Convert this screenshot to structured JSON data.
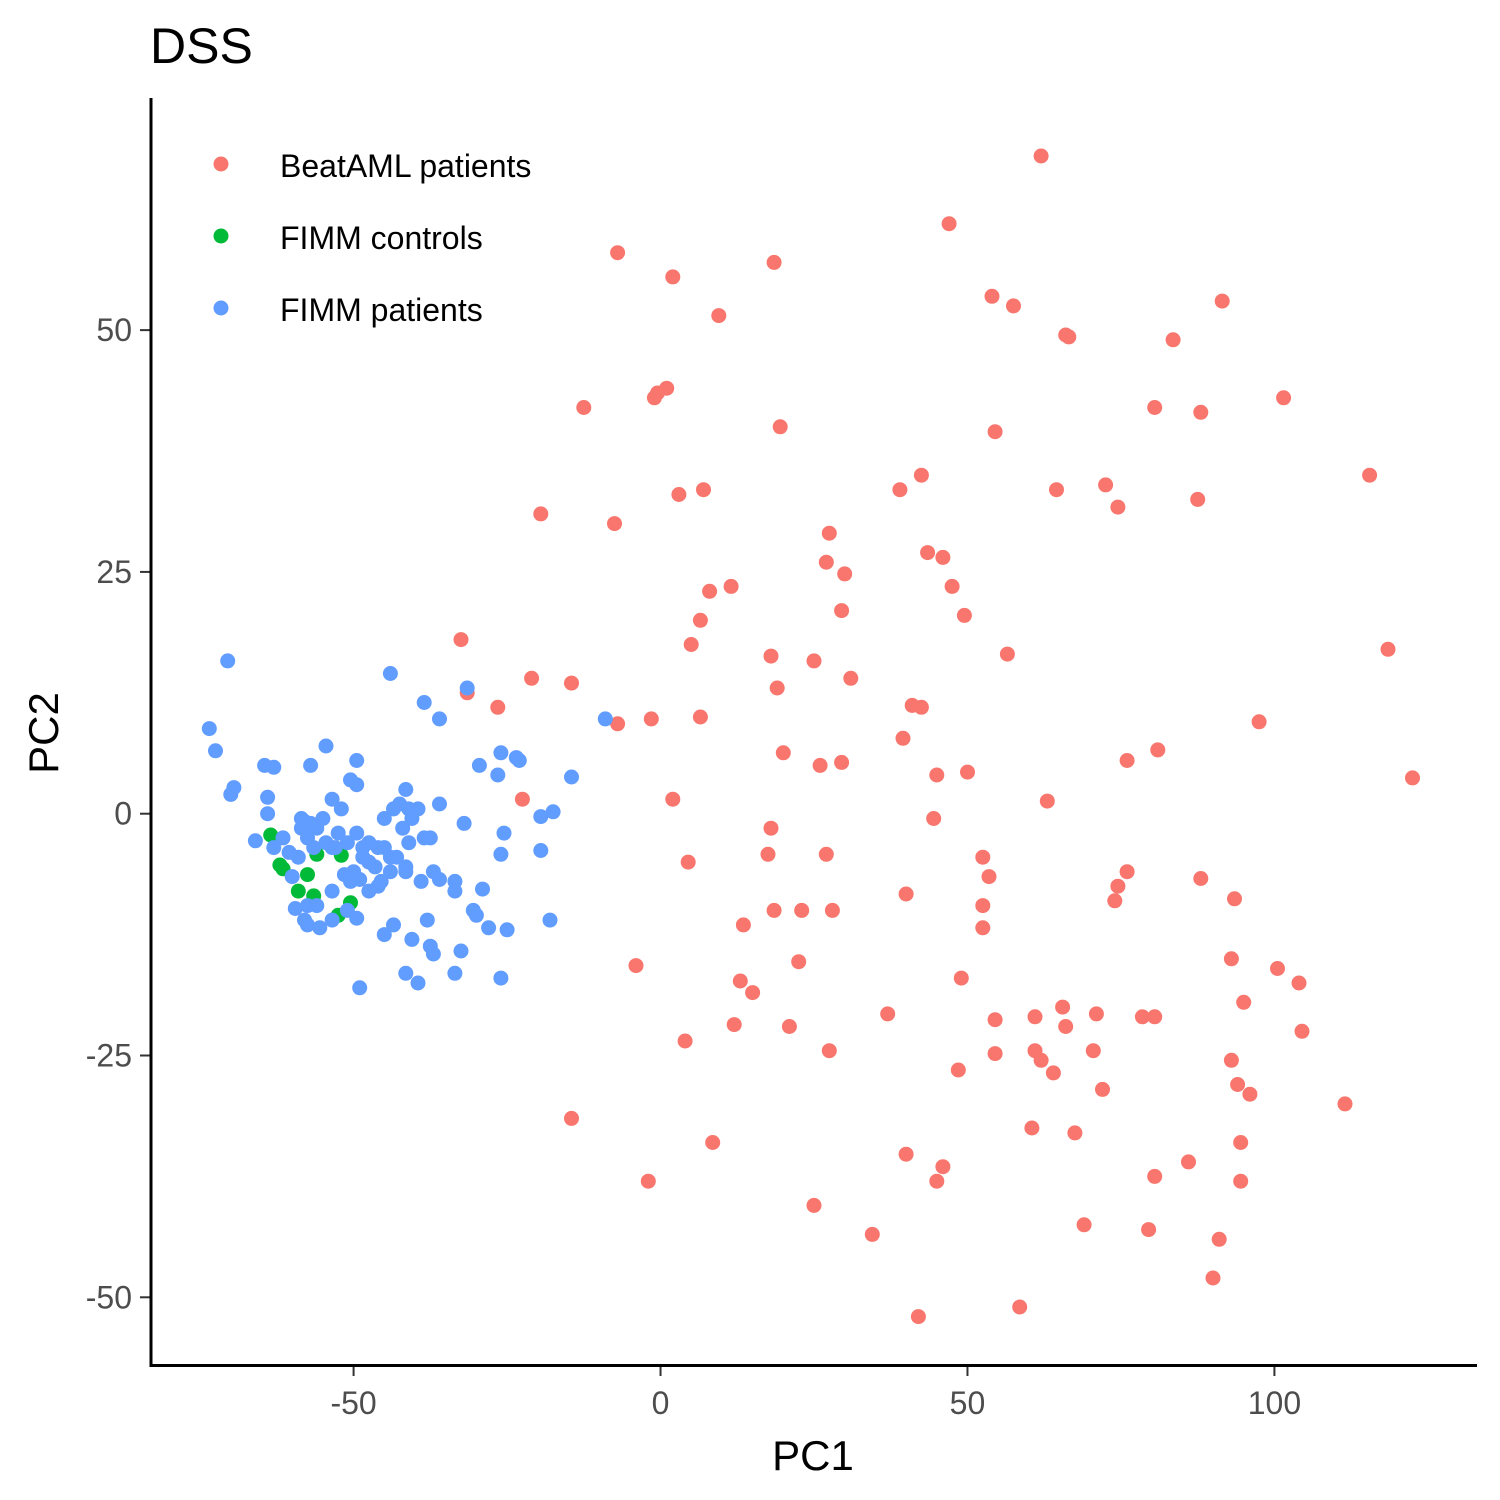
{
  "chart_data": {
    "type": "scatter",
    "title": "DSS",
    "xlabel": "PC1",
    "ylabel": "PC2",
    "xlim": [
      -83,
      133
    ],
    "ylim": [
      -57,
      74
    ],
    "x_ticks": [
      -50,
      0,
      50,
      100
    ],
    "y_ticks": [
      -50,
      -25,
      0,
      25,
      50
    ],
    "x_tick_labels": [
      "-50",
      "0",
      "50",
      "100"
    ],
    "y_tick_labels": [
      "-50",
      "-25",
      "0",
      "25",
      "50"
    ],
    "grid": false,
    "legend_position": "top-left",
    "series": [
      {
        "name": "BeatAML patients",
        "color": "#F8766D",
        "points": [
          [
            62,
            68
          ],
          [
            47,
            61
          ],
          [
            -7,
            58
          ],
          [
            2,
            55.5
          ],
          [
            18.5,
            57
          ],
          [
            54,
            53.5
          ],
          [
            57.5,
            52.5
          ],
          [
            91.5,
            53
          ],
          [
            9.5,
            51.5
          ],
          [
            66,
            49.5
          ],
          [
            66.5,
            49.3
          ],
          [
            83.5,
            49
          ],
          [
            1,
            44
          ],
          [
            -0.5,
            43.5
          ],
          [
            -1,
            43
          ],
          [
            -12.5,
            42
          ],
          [
            80.5,
            42
          ],
          [
            88,
            41.5
          ],
          [
            101.5,
            43
          ],
          [
            19.5,
            40
          ],
          [
            54.5,
            39.5
          ],
          [
            115.5,
            35
          ],
          [
            42.5,
            35
          ],
          [
            39,
            33.5
          ],
          [
            64.5,
            33.5
          ],
          [
            72.5,
            34
          ],
          [
            3,
            33
          ],
          [
            7,
            33.5
          ],
          [
            74.5,
            31.7
          ],
          [
            87.5,
            32.5
          ],
          [
            -19.5,
            31
          ],
          [
            -7.5,
            30
          ],
          [
            27.5,
            29
          ],
          [
            43.5,
            27
          ],
          [
            46,
            26.5
          ],
          [
            27,
            26
          ],
          [
            30,
            24.8
          ],
          [
            47.5,
            23.5
          ],
          [
            8,
            23
          ],
          [
            11.5,
            23.5
          ],
          [
            29.5,
            21
          ],
          [
            49.5,
            20.5
          ],
          [
            6.5,
            20
          ],
          [
            5,
            17.5
          ],
          [
            -32.5,
            18
          ],
          [
            56.5,
            16.5
          ],
          [
            118.5,
            17
          ],
          [
            18,
            16.3
          ],
          [
            25,
            15.8
          ],
          [
            -21,
            14
          ],
          [
            -14.5,
            13.5
          ],
          [
            31,
            14
          ],
          [
            19,
            13
          ],
          [
            -31.5,
            12.5
          ],
          [
            41,
            11.2
          ],
          [
            42.5,
            11
          ],
          [
            -26.5,
            11
          ],
          [
            97.5,
            9.5
          ],
          [
            -7,
            9.3
          ],
          [
            -1.5,
            9.8
          ],
          [
            6.5,
            10
          ],
          [
            39.5,
            7.8
          ],
          [
            20,
            6.3
          ],
          [
            81,
            6.6
          ],
          [
            76,
            5.5
          ],
          [
            29.5,
            5.3
          ],
          [
            26,
            5
          ],
          [
            50,
            4.3
          ],
          [
            45,
            4
          ],
          [
            122.5,
            3.7
          ],
          [
            -22.5,
            1.5
          ],
          [
            2,
            1.5
          ],
          [
            63,
            1.3
          ],
          [
            44.5,
            -0.5
          ],
          [
            18,
            -1.5
          ],
          [
            17.5,
            -4.2
          ],
          [
            27,
            -4.2
          ],
          [
            52.5,
            -4.5
          ],
          [
            4.5,
            -5
          ],
          [
            53.5,
            -6.5
          ],
          [
            76,
            -6
          ],
          [
            74.5,
            -7.5
          ],
          [
            88,
            -6.7
          ],
          [
            74,
            -9
          ],
          [
            40,
            -8.3
          ],
          [
            93.5,
            -8.8
          ],
          [
            52.5,
            -9.5
          ],
          [
            18.5,
            -10
          ],
          [
            23,
            -10
          ],
          [
            28,
            -10
          ],
          [
            52.5,
            -11.8
          ],
          [
            13.5,
            -11.5
          ],
          [
            -4,
            -15.7
          ],
          [
            22.5,
            -15.3
          ],
          [
            93,
            -15
          ],
          [
            100.5,
            -16
          ],
          [
            49,
            -17
          ],
          [
            13,
            -17.3
          ],
          [
            104,
            -17.5
          ],
          [
            15,
            -18.5
          ],
          [
            95,
            -19.5
          ],
          [
            65.5,
            -20
          ],
          [
            71,
            -20.7
          ],
          [
            37,
            -20.7
          ],
          [
            61,
            -21
          ],
          [
            78.5,
            -21
          ],
          [
            80.5,
            -21
          ],
          [
            54.5,
            -21.3
          ],
          [
            12,
            -21.8
          ],
          [
            21,
            -22
          ],
          [
            66,
            -22
          ],
          [
            104.5,
            -22.5
          ],
          [
            4,
            -23.5
          ],
          [
            27.5,
            -24.5
          ],
          [
            61,
            -24.5
          ],
          [
            54.5,
            -24.8
          ],
          [
            70.5,
            -24.5
          ],
          [
            62,
            -25.5
          ],
          [
            93,
            -25.5
          ],
          [
            48.5,
            -26.5
          ],
          [
            64,
            -26.8
          ],
          [
            94,
            -28
          ],
          [
            72,
            -28.5
          ],
          [
            96,
            -29
          ],
          [
            111.5,
            -30
          ],
          [
            -14.5,
            -31.5
          ],
          [
            60.5,
            -32.5
          ],
          [
            67.5,
            -33
          ],
          [
            8.5,
            -34
          ],
          [
            94.5,
            -34
          ],
          [
            40,
            -35.2
          ],
          [
            86,
            -36
          ],
          [
            46,
            -36.5
          ],
          [
            80.5,
            -37.5
          ],
          [
            -2,
            -38
          ],
          [
            45,
            -38
          ],
          [
            94.5,
            -38
          ],
          [
            25,
            -40.5
          ],
          [
            34.5,
            -43.5
          ],
          [
            69,
            -42.5
          ],
          [
            79.5,
            -43
          ],
          [
            91,
            -44
          ],
          [
            90,
            -48
          ],
          [
            58.5,
            -51
          ],
          [
            42,
            -52
          ]
        ]
      },
      {
        "name": "FIMM controls",
        "color": "#00BA38",
        "points": [
          [
            -63.5,
            -2.2
          ],
          [
            -62,
            -5.3
          ],
          [
            -61.5,
            -5.7
          ],
          [
            -57.5,
            -6.3
          ],
          [
            -59,
            -8
          ],
          [
            -56.5,
            -8.5
          ],
          [
            -56,
            -4.2
          ],
          [
            -52,
            -4.3
          ],
          [
            -50.5,
            -9.2
          ],
          [
            -52.5,
            -10.5
          ]
        ]
      },
      {
        "name": "FIMM patients",
        "color": "#619CFF",
        "points": [
          [
            -70.5,
            15.8
          ],
          [
            -73.5,
            8.8
          ],
          [
            -72.5,
            6.5
          ],
          [
            -69.5,
            2.7
          ],
          [
            -70,
            2
          ],
          [
            -64.5,
            5
          ],
          [
            -63,
            4.8
          ],
          [
            -64,
            1.7
          ],
          [
            -64,
            0
          ],
          [
            -66,
            -2.8
          ],
          [
            -61.5,
            -2.5
          ],
          [
            -63,
            -3.5
          ],
          [
            -60.5,
            -4
          ],
          [
            -58.5,
            -0.5
          ],
          [
            -58.5,
            -1.5
          ],
          [
            -57.5,
            -2.5
          ],
          [
            -59,
            -4.5
          ],
          [
            -56,
            -1.5
          ],
          [
            -55,
            -0.5
          ],
          [
            -54.5,
            -3
          ],
          [
            -53.5,
            -3.5
          ],
          [
            -52.5,
            -2
          ],
          [
            -51,
            -3
          ],
          [
            -49.5,
            -2
          ],
          [
            -48.5,
            -3.5
          ],
          [
            -47.5,
            -3
          ],
          [
            -46,
            -3.5
          ],
          [
            -45,
            -3.5
          ],
          [
            -44,
            -4.5
          ],
          [
            -43,
            -4.5
          ],
          [
            -57,
            5
          ],
          [
            -54.5,
            7
          ],
          [
            -53.5,
            1.5
          ],
          [
            -52,
            0.5
          ],
          [
            -50.5,
            3.5
          ],
          [
            -49.5,
            5.5
          ],
          [
            -49.5,
            3
          ],
          [
            -48.5,
            -4.5
          ],
          [
            -47.5,
            -5
          ],
          [
            -46.5,
            -5.5
          ],
          [
            -50,
            -6
          ],
          [
            -51.5,
            -6.3
          ],
          [
            -50.5,
            -7
          ],
          [
            -49,
            -6.8
          ],
          [
            -46,
            -7.5
          ],
          [
            -47.5,
            -8
          ],
          [
            -45.5,
            -7
          ],
          [
            -44,
            -6
          ],
          [
            -41.5,
            -5.5
          ],
          [
            -45,
            -0.5
          ],
          [
            -43.5,
            0.5
          ],
          [
            -42.5,
            1
          ],
          [
            -41,
            0.5
          ],
          [
            -40.5,
            -0.5
          ],
          [
            -39.5,
            0.5
          ],
          [
            -42,
            -1.5
          ],
          [
            -41,
            -3
          ],
          [
            -38.5,
            -2.5
          ],
          [
            -37.5,
            -2.5
          ],
          [
            -36,
            1
          ],
          [
            -41.5,
            2.5
          ],
          [
            -44,
            14.5
          ],
          [
            -38.5,
            11.5
          ],
          [
            -36,
            9.8
          ],
          [
            -31.5,
            13
          ],
          [
            -29.5,
            5
          ],
          [
            -26,
            6.3
          ],
          [
            -26.5,
            4
          ],
          [
            -23.5,
            5.8
          ],
          [
            -23,
            5.5
          ],
          [
            -19.5,
            -0.3
          ],
          [
            -17.5,
            0.2
          ],
          [
            -14.5,
            3.8
          ],
          [
            -9,
            9.8
          ],
          [
            -32,
            -1
          ],
          [
            -25.5,
            -2
          ],
          [
            -26,
            -4.2
          ],
          [
            -19.5,
            -3.8
          ],
          [
            -18,
            -11
          ],
          [
            -25,
            -12
          ],
          [
            -28,
            -11.8
          ],
          [
            -30.5,
            -10
          ],
          [
            -29,
            -7.8
          ],
          [
            -33.5,
            -7
          ],
          [
            -33.5,
            -8
          ],
          [
            -37,
            -6
          ],
          [
            -36,
            -6.8
          ],
          [
            -39,
            -7
          ],
          [
            -41.5,
            -6
          ],
          [
            -38,
            -11
          ],
          [
            -43.5,
            -11.5
          ],
          [
            -45,
            -12.5
          ],
          [
            -40.5,
            -13
          ],
          [
            -37.5,
            -13.7
          ],
          [
            -37,
            -14.5
          ],
          [
            -32.5,
            -14.2
          ],
          [
            -30,
            -10.5
          ],
          [
            -26,
            -17
          ],
          [
            -33.5,
            -16.5
          ],
          [
            -41.5,
            -16.5
          ],
          [
            -39.5,
            -17.5
          ],
          [
            -49,
            -18
          ],
          [
            -53.5,
            -8
          ],
          [
            -53.5,
            -11
          ],
          [
            -51,
            -10
          ],
          [
            -49.5,
            -10.8
          ],
          [
            -56,
            -9.5
          ],
          [
            -57.5,
            -9.5
          ],
          [
            -59.5,
            -9.8
          ],
          [
            -57.5,
            -11.5
          ],
          [
            -55.5,
            -11.8
          ],
          [
            -58,
            -11
          ],
          [
            -60,
            -6.5
          ],
          [
            -56.5,
            -3.5
          ],
          [
            -53,
            -3.5
          ],
          [
            -57,
            -1
          ],
          [
            -58,
            -0.8
          ]
        ]
      }
    ]
  }
}
